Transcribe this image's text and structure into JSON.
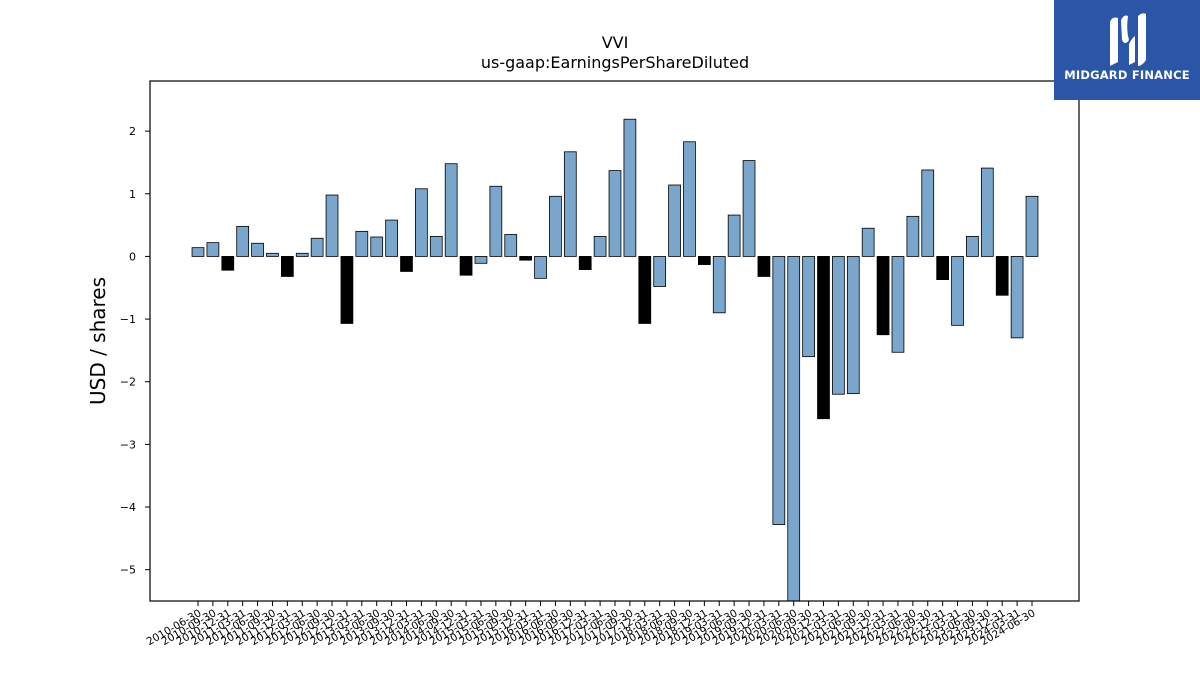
{
  "chart_data": {
    "type": "bar",
    "title": "VVI",
    "subtitle": "us-gaap:EarningsPerShareDiluted",
    "ylabel": "USD / shares",
    "xlabel": "",
    "ylim": [
      -5.5,
      2.8
    ],
    "yticks": [
      -5,
      -4,
      -3,
      -2,
      -1,
      0,
      1,
      2
    ],
    "grid": false,
    "categories": [
      "2010-06-30",
      "2010-09-30",
      "2010-12-31",
      "2011-03-31",
      "2011-06-30",
      "2011-09-30",
      "2011-12-31",
      "2012-03-31",
      "2012-06-30",
      "2012-09-30",
      "2012-12-31",
      "2013-03-31",
      "2013-06-30",
      "2013-09-30",
      "2013-12-31",
      "2014-03-31",
      "2014-06-30",
      "2014-09-30",
      "2014-12-31",
      "2015-03-31",
      "2015-06-30",
      "2015-09-30",
      "2015-12-31",
      "2016-03-31",
      "2016-06-30",
      "2016-09-30",
      "2016-12-31",
      "2017-03-31",
      "2017-06-30",
      "2017-09-30",
      "2017-12-31",
      "2018-03-31",
      "2018-06-30",
      "2018-09-30",
      "2018-12-31",
      "2019-03-31",
      "2019-06-30",
      "2019-09-30",
      "2019-12-31",
      "2020-03-31",
      "2020-06-30",
      "2020-09-30",
      "2020-12-31",
      "2021-03-31",
      "2021-06-30",
      "2021-09-30",
      "2021-12-31",
      "2022-03-31",
      "2022-06-30",
      "2022-09-30",
      "2022-12-31",
      "2023-03-31",
      "2023-06-30",
      "2023-09-30",
      "2023-12-31",
      "2024-03-31",
      "2024-06-30"
    ],
    "values": [
      0.14,
      0.22,
      -0.22,
      0.48,
      0.21,
      0.05,
      -0.32,
      0.05,
      0.29,
      0.98,
      -1.07,
      0.4,
      0.31,
      0.58,
      -0.24,
      1.08,
      0.32,
      1.48,
      -0.3,
      -0.11,
      1.12,
      0.35,
      -0.06,
      -0.35,
      0.96,
      1.67,
      -0.21,
      0.32,
      1.37,
      2.19,
      -1.07,
      -0.48,
      1.14,
      1.83,
      -0.13,
      -0.9,
      0.66,
      1.53,
      -0.32,
      -4.28,
      -5.75,
      -1.6,
      -2.59,
      -2.2,
      -2.19,
      0.45,
      -1.25,
      -1.53,
      0.64,
      1.38,
      -0.37,
      -1.1,
      0.32,
      1.41,
      -0.62,
      -1.3,
      0.96
    ],
    "highlighted_category_indices": [
      2,
      6,
      10,
      14,
      18,
      22,
      26,
      30,
      34,
      38,
      42,
      46,
      50,
      54
    ],
    "colors": {
      "bar": "#7aa6cc",
      "highlight": "#000000",
      "edge": "#000000"
    }
  },
  "logo": {
    "text": "MIDGARD FINANCE",
    "bg": "#2b56a8"
  }
}
